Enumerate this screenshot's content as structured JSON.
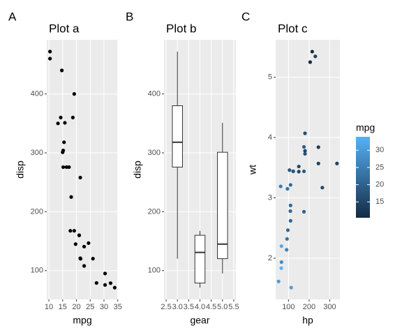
{
  "chart_data": [
    {
      "type": "scatter",
      "tag": "A",
      "title": "Plot a",
      "xlabel": "mpg",
      "ylabel": "disp",
      "color": "#000000",
      "x": [
        21.0,
        21.0,
        22.8,
        21.4,
        18.7,
        18.1,
        14.3,
        24.4,
        22.8,
        19.2,
        17.8,
        16.4,
        17.3,
        15.2,
        10.4,
        10.4,
        14.7,
        32.4,
        30.4,
        33.9,
        21.5,
        15.5,
        15.2,
        13.3,
        19.2,
        27.3,
        26.0,
        30.4,
        15.8,
        19.7,
        15.0,
        21.4
      ],
      "y": [
        160,
        160,
        108,
        258,
        360,
        225,
        360,
        146.7,
        140.8,
        167.6,
        167.6,
        275.8,
        275.8,
        275.8,
        472,
        460,
        440,
        78.7,
        75.7,
        71.1,
        120.1,
        318,
        304,
        350,
        400,
        79,
        120.3,
        95.1,
        351,
        145,
        301,
        121
      ],
      "xlim": [
        9.225,
        35.075
      ],
      "xticks": [
        10,
        15,
        20,
        25,
        30,
        35
      ],
      "ylim": [
        51.1,
        492
      ],
      "yticks": [
        100,
        200,
        300,
        400
      ],
      "grid": true
    },
    {
      "type": "box",
      "tag": "B",
      "title": "Plot b",
      "xlabel": "gear",
      "ylabel": "disp",
      "x": [
        3,
        4,
        5
      ],
      "min": [
        120.1,
        71.1,
        95.1
      ],
      "q1": [
        275.8,
        78.9,
        120.3
      ],
      "median": [
        318,
        130.9,
        145
      ],
      "q3": [
        380,
        160,
        301
      ],
      "max": [
        472,
        167.6,
        351
      ],
      "xlim": [
        2.405,
        5.595
      ],
      "xticks": [
        {
          "value": 2.5,
          "label": "2.5"
        },
        {
          "value": 3,
          "label": "3.0"
        },
        {
          "value": 3.5,
          "label": "3.5"
        },
        {
          "value": 4,
          "label": "4.0"
        },
        {
          "value": 4.5,
          "label": "4.5"
        },
        {
          "value": 5,
          "label": "5.0"
        },
        {
          "value": 5.5,
          "label": "5.5"
        }
      ],
      "ylim": [
        51.1,
        492
      ],
      "yticks": [
        100,
        200,
        300,
        400
      ],
      "grid": true
    },
    {
      "type": "scatter",
      "tag": "C",
      "title": "Plot c",
      "xlabel": "hp",
      "ylabel": "wt",
      "x": [
        110,
        110,
        93,
        110,
        175,
        105,
        245,
        62,
        95,
        123,
        123,
        180,
        180,
        180,
        205,
        215,
        230,
        66,
        52,
        65,
        97,
        150,
        150,
        245,
        175,
        66,
        91,
        113,
        264,
        175,
        335,
        109
      ],
      "y": [
        2.62,
        2.875,
        2.32,
        3.215,
        3.44,
        3.46,
        3.57,
        3.19,
        3.15,
        3.44,
        3.44,
        4.07,
        3.73,
        3.78,
        5.25,
        5.424,
        5.345,
        2.2,
        1.615,
        1.835,
        2.465,
        3.52,
        3.435,
        3.84,
        3.845,
        1.935,
        2.14,
        1.513,
        3.17,
        2.77,
        3.57,
        2.78
      ],
      "color_values": [
        21.0,
        21.0,
        22.8,
        21.4,
        18.7,
        18.1,
        14.3,
        24.4,
        22.8,
        19.2,
        17.8,
        16.4,
        17.3,
        15.2,
        10.4,
        10.4,
        14.7,
        32.4,
        30.4,
        33.9,
        21.5,
        15.5,
        15.2,
        13.3,
        19.2,
        27.3,
        26.0,
        30.4,
        15.8,
        19.7,
        15.0,
        21.4
      ],
      "color_scale": {
        "name": "mpg",
        "low": "#132B43",
        "high": "#56B1F7",
        "limits": [
          10.4,
          33.9
        ],
        "ticks": [
          15,
          20,
          25,
          30
        ]
      },
      "xlim": [
        37.85,
        349.15
      ],
      "xticks": [
        100,
        200,
        300
      ],
      "ylim": [
        1.317,
        5.62
      ],
      "yticks": [
        2,
        3,
        4,
        5
      ],
      "grid": true
    }
  ]
}
